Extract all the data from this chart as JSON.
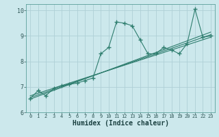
{
  "xlabel": "Humidex (Indice chaleur)",
  "ylabel": "",
  "bg_color": "#cce8ec",
  "line_color": "#2e7d6e",
  "grid_color": "#afd0d6",
  "xlim": [
    -0.5,
    23.5
  ],
  "ylim": [
    6,
    10.25
  ],
  "xticks": [
    0,
    1,
    2,
    3,
    4,
    5,
    6,
    7,
    8,
    9,
    10,
    11,
    12,
    13,
    14,
    15,
    16,
    17,
    18,
    19,
    20,
    21,
    22,
    23
  ],
  "yticks": [
    6,
    7,
    8,
    9,
    10
  ],
  "main_x": [
    0,
    1,
    2,
    3,
    4,
    5,
    6,
    7,
    8,
    9,
    10,
    11,
    12,
    13,
    14,
    15,
    16,
    17,
    18,
    19,
    20,
    21,
    22,
    23
  ],
  "main_y": [
    6.55,
    6.85,
    6.65,
    6.95,
    7.05,
    7.1,
    7.15,
    7.25,
    7.35,
    8.3,
    8.55,
    9.55,
    9.5,
    9.4,
    8.85,
    8.3,
    8.3,
    8.55,
    8.45,
    8.3,
    8.7,
    10.05,
    8.95,
    9.0
  ],
  "reg_lines": [
    {
      "x": [
        0,
        23
      ],
      "y": [
        6.58,
        9.05
      ]
    },
    {
      "x": [
        0,
        23
      ],
      "y": [
        6.65,
        8.95
      ]
    },
    {
      "x": [
        0,
        23
      ],
      "y": [
        6.52,
        9.15
      ]
    }
  ]
}
